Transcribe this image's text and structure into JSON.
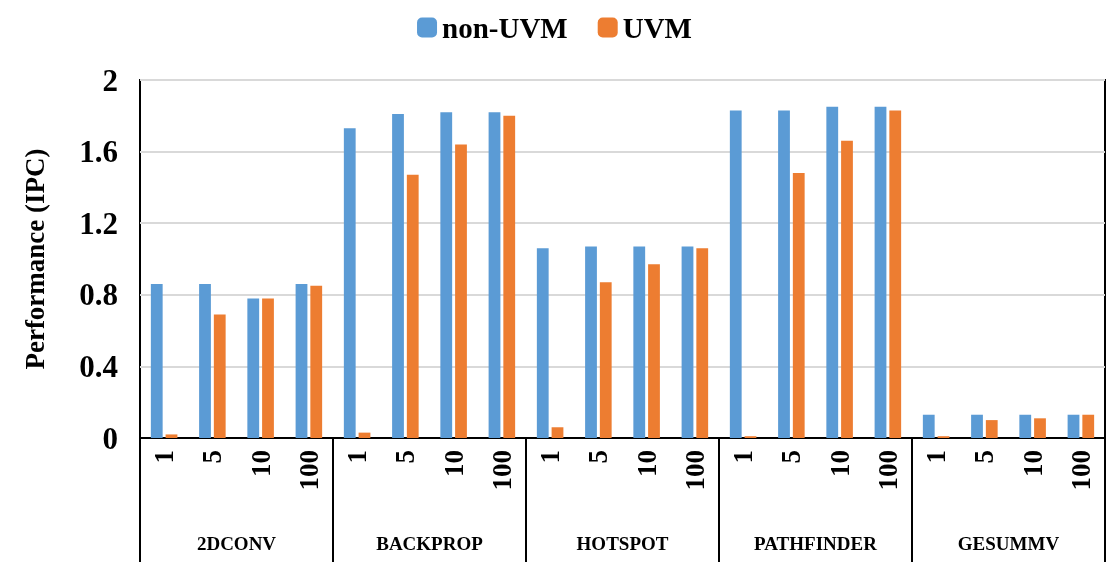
{
  "chart_data": {
    "type": "bar",
    "ylabel": "Performance (IPC)",
    "categories": [
      "1",
      "5",
      "10",
      "100",
      "1",
      "5",
      "10",
      "100",
      "1",
      "5",
      "10",
      "100",
      "1",
      "5",
      "10",
      "100",
      "1",
      "5",
      "10",
      "100"
    ],
    "annotations": [
      "2DCONV",
      "BACKPROP",
      "HOTSPOT",
      "PATHFINDER",
      "GESUMMV"
    ],
    "series": [
      {
        "name": "non-UVM",
        "color": "#5b9bd5",
        "values": [
          0.86,
          0.86,
          0.78,
          0.86,
          1.73,
          1.81,
          1.82,
          1.82,
          1.06,
          1.07,
          1.07,
          1.07,
          1.83,
          1.83,
          1.85,
          1.85,
          0.13,
          0.13,
          0.13,
          0.13
        ]
      },
      {
        "name": "UVM",
        "color": "#ed7d31",
        "values": [
          0.02,
          0.69,
          0.78,
          0.85,
          0.03,
          1.47,
          1.64,
          1.8,
          0.06,
          0.87,
          0.97,
          1.06,
          0.01,
          1.48,
          1.66,
          1.83,
          0.01,
          0.1,
          0.11,
          0.13
        ]
      }
    ],
    "ylim": [
      0,
      2
    ],
    "yticks": [
      0,
      0.4,
      0.8,
      1.2,
      1.6,
      2
    ],
    "grid": "y",
    "legend": "top"
  }
}
